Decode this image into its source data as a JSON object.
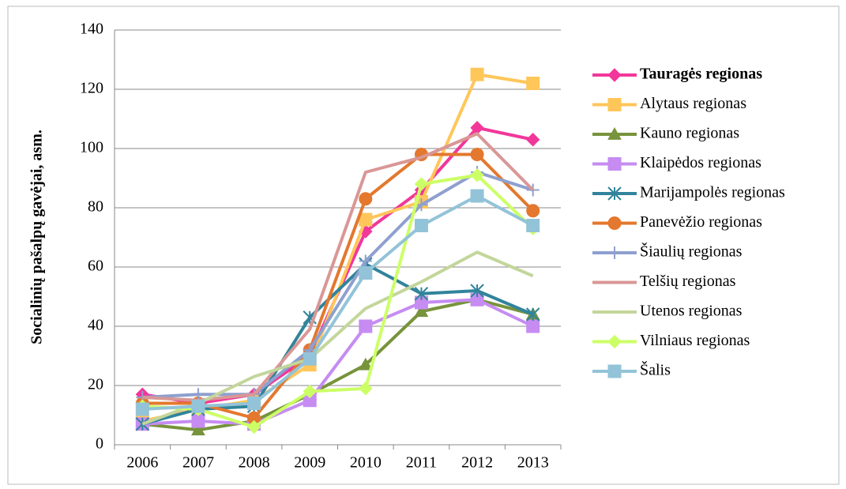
{
  "chart_data": {
    "type": "line",
    "y_label": "Socialinių pašalpų gavėjai, asm.",
    "categories": [
      "2006",
      "2007",
      "2008",
      "2009",
      "2010",
      "2011",
      "2012",
      "2013"
    ],
    "ylim": [
      0,
      140
    ],
    "yticks": [
      0,
      20,
      40,
      60,
      80,
      100,
      120,
      140
    ],
    "grid": true,
    "legend": "right",
    "series": [
      {
        "name": "Tauragės regionas",
        "color": "#f2379a",
        "marker": "diamond",
        "values": [
          17,
          14,
          17,
          30,
          72,
          86,
          107,
          103
        ]
      },
      {
        "name": "Alytaus regionas",
        "color": "#ffc65a",
        "marker": "square",
        "values": [
          8,
          12,
          15,
          27,
          76,
          82,
          125,
          122
        ]
      },
      {
        "name": "Kauno regionas",
        "color": "#77933c",
        "marker": "triangle",
        "values": [
          7,
          5,
          8,
          17,
          27,
          45,
          49,
          44
        ]
      },
      {
        "name": "Klaipėdos regionas",
        "color": "#c68cf2",
        "marker": "square",
        "values": [
          7,
          8,
          7,
          15,
          40,
          48,
          49,
          40
        ]
      },
      {
        "name": "Marijampolės regionas",
        "color": "#31849b",
        "marker": "asterisk",
        "values": [
          7,
          12,
          13,
          43,
          61,
          51,
          52,
          44
        ]
      },
      {
        "name": "Panevėžio regionas",
        "color": "#e3782e",
        "marker": "circle",
        "values": [
          14,
          14,
          9,
          32,
          83,
          98,
          98,
          79
        ]
      },
      {
        "name": "Šiaulių regionas",
        "color": "#8ea0cf",
        "marker": "plus",
        "values": [
          16,
          17,
          17,
          32,
          62,
          81,
          92,
          86
        ]
      },
      {
        "name": "Telšių regionas",
        "color": "#d99795",
        "marker": "none",
        "values": [
          16,
          15,
          17,
          39,
          92,
          97,
          105,
          86
        ]
      },
      {
        "name": "Utenos regionas",
        "color": "#c3d69b",
        "marker": "none",
        "values": [
          7,
          14,
          23,
          29,
          46,
          55,
          65,
          57
        ]
      },
      {
        "name": "Vilniaus regionas",
        "color": "#ccff66",
        "marker": "diamond",
        "values": [
          13,
          12,
          6,
          18,
          19,
          88,
          91,
          73
        ]
      },
      {
        "name": "Šalis",
        "color": "#93c3d8",
        "marker": "square",
        "values": [
          12,
          13,
          14,
          29,
          58,
          74,
          84,
          74
        ]
      }
    ]
  }
}
